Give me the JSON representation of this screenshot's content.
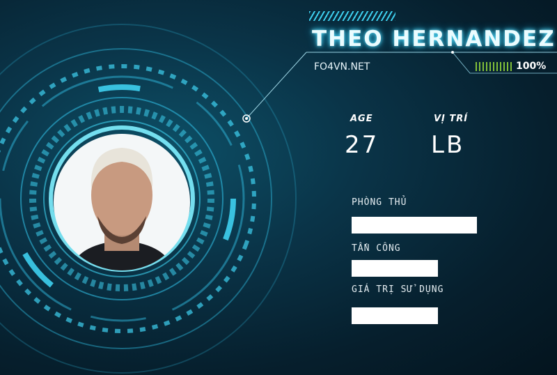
{
  "player": {
    "name": "THEO HERNANDEZ",
    "site": "FO4VN.NET",
    "completion": "100%",
    "completion_value": 100
  },
  "info": {
    "age_label": "AGE",
    "age": "27",
    "position_label": "VỊ TRÍ",
    "position": "LB"
  },
  "stats": [
    {
      "label": "PHÒNG THỦ",
      "fill": 0.9
    },
    {
      "label": "TẤN CÔNG",
      "fill": 0.62
    },
    {
      "label": "GIÁ TRỊ SỬ DỤNG",
      "fill": 0.62
    }
  ],
  "colors": {
    "accent": "#3ed0ef",
    "progress": "#8fd13a",
    "background": "#061f2d"
  }
}
